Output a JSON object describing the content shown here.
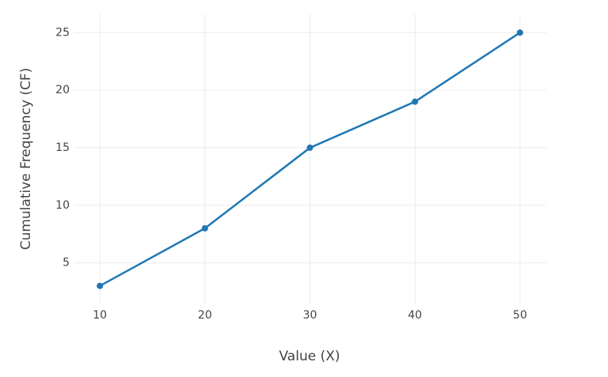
{
  "chart_data": {
    "type": "line",
    "x_label": "Value (X)",
    "y_label": "Cumulative Frequency (CF)",
    "x": [
      10,
      20,
      30,
      40,
      50
    ],
    "series": [
      {
        "color": "#1f77b4",
        "values": [
          3,
          8,
          15,
          19,
          25
        ]
      }
    ],
    "xlim": [
      7.5,
      52.5
    ],
    "xticks": [
      10,
      20,
      30,
      40,
      50
    ],
    "ylim": [
      1.4,
      26.6
    ],
    "yticks": [
      5,
      10,
      15,
      20,
      25
    ],
    "grid": true
  }
}
